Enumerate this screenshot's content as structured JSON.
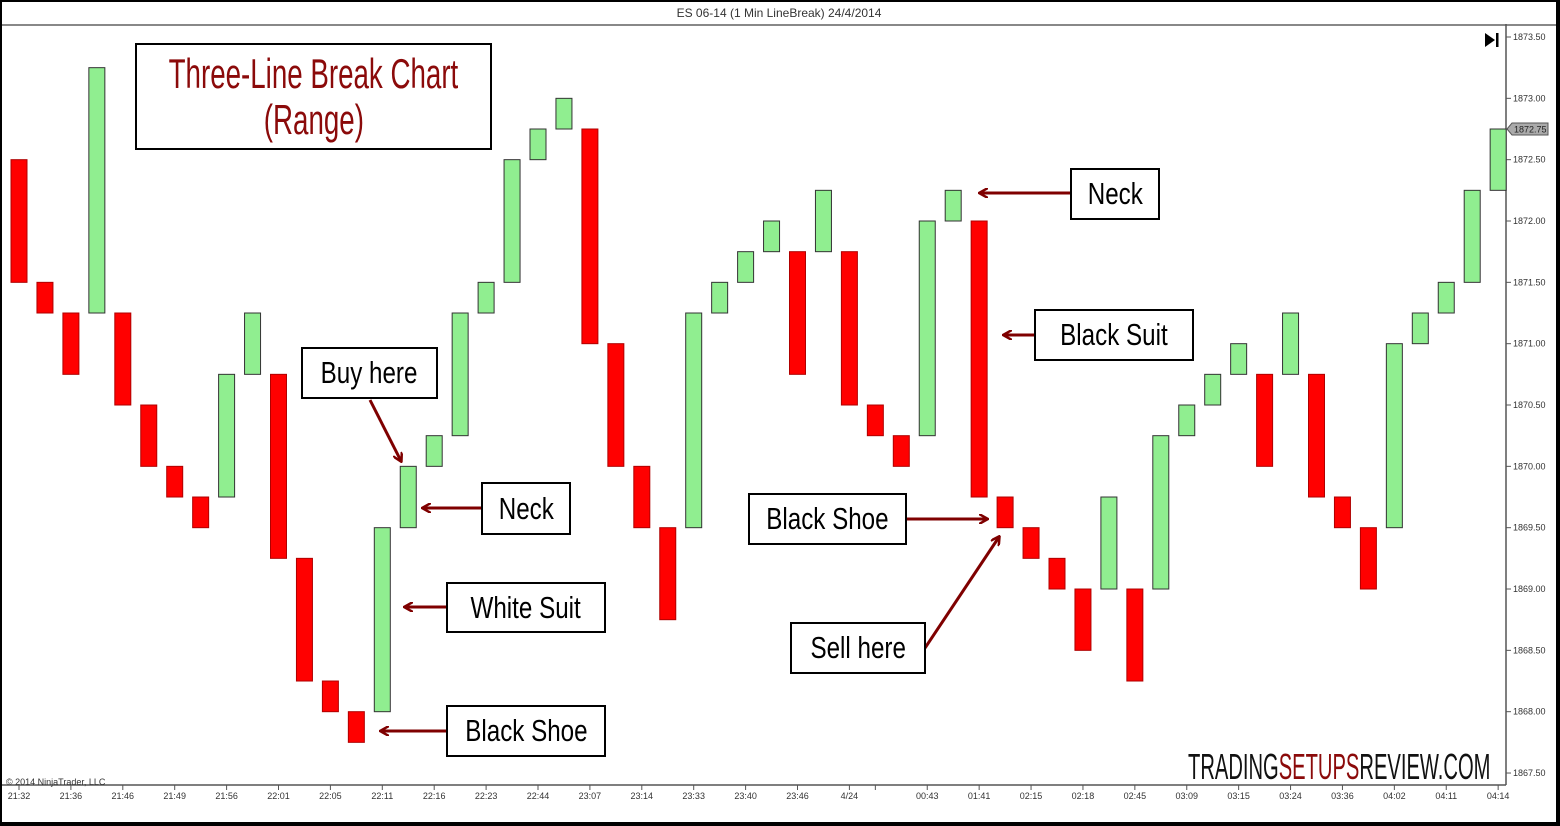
{
  "header": {
    "title": "ES 06-14 (1 Min LineBreak)  24/4/2014"
  },
  "copyright": "© 2014 NinjaTrader, LLC",
  "watermark": {
    "part1": "TRADING",
    "part2": "SETUPS",
    "part3": "REVIEW.COM"
  },
  "colors": {
    "up": "#90ee90",
    "down": "#ff0000",
    "annotation_arrow": "#7f0000",
    "title_text": "#8b0a0a",
    "watermark_accent": "#8b0a0a"
  },
  "icons": {
    "go_to_end": "play-end-icon"
  },
  "chart_data": {
    "type": "three-line-break",
    "title": "Three-Line Break Chart (Range)",
    "title_lines": [
      "Three-Line Break Chart",
      "(Range)"
    ],
    "ylim": [
      1867.5,
      1873.5
    ],
    "y_ticks": [
      "1873.50",
      "1873.00",
      "1872.50",
      "1872.00",
      "1871.50",
      "1871.00",
      "1870.50",
      "1870.00",
      "1869.50",
      "1869.00",
      "1868.50",
      "1868.00",
      "1867.50"
    ],
    "last_price": "1872.75",
    "bricks": [
      [
        1872.5,
        1871.5
      ],
      [
        1871.5,
        1871.25
      ],
      [
        1871.25,
        1870.75
      ],
      [
        1871.25,
        1873.25
      ],
      [
        1871.25,
        1870.5
      ],
      [
        1870.5,
        1870.0
      ],
      [
        1870.0,
        1869.75
      ],
      [
        1869.75,
        1869.5
      ],
      [
        1869.75,
        1870.75
      ],
      [
        1870.75,
        1871.25
      ],
      [
        1870.75,
        1869.25
      ],
      [
        1869.25,
        1868.25
      ],
      [
        1868.25,
        1868.0
      ],
      [
        1868.0,
        1867.75
      ],
      [
        1868.0,
        1869.5
      ],
      [
        1869.5,
        1870.0
      ],
      [
        1870.0,
        1870.25
      ],
      [
        1870.25,
        1871.25
      ],
      [
        1871.25,
        1871.5
      ],
      [
        1871.5,
        1872.5
      ],
      [
        1872.5,
        1872.75
      ],
      [
        1872.75,
        1873.0
      ],
      [
        1872.75,
        1871.0
      ],
      [
        1871.0,
        1870.0
      ],
      [
        1870.0,
        1869.5
      ],
      [
        1869.5,
        1868.75
      ],
      [
        1869.5,
        1871.25
      ],
      [
        1871.25,
        1871.5
      ],
      [
        1871.5,
        1871.75
      ],
      [
        1871.75,
        1872.0
      ],
      [
        1871.75,
        1870.75
      ],
      [
        1871.75,
        1872.25
      ],
      [
        1871.75,
        1870.5
      ],
      [
        1870.5,
        1870.25
      ],
      [
        1870.25,
        1870.0
      ],
      [
        1870.25,
        1872.0
      ],
      [
        1872.0,
        1872.25
      ],
      [
        1872.0,
        1869.75
      ],
      [
        1869.75,
        1869.5
      ],
      [
        1869.5,
        1869.25
      ],
      [
        1869.25,
        1869.0
      ],
      [
        1869.0,
        1868.5
      ],
      [
        1869.0,
        1869.75
      ],
      [
        1869.0,
        1868.25
      ],
      [
        1869.0,
        1870.25
      ],
      [
        1870.25,
        1870.5
      ],
      [
        1870.5,
        1870.75
      ],
      [
        1870.75,
        1871.0
      ],
      [
        1870.75,
        1870.0
      ],
      [
        1870.75,
        1871.25
      ],
      [
        1870.75,
        1869.75
      ],
      [
        1869.75,
        1869.5
      ],
      [
        1869.5,
        1869.0
      ],
      [
        1869.5,
        1871.0
      ],
      [
        1871.0,
        1871.25
      ],
      [
        1871.25,
        1871.5
      ],
      [
        1871.5,
        1872.25
      ],
      [
        1872.25,
        1872.75
      ]
    ],
    "x_ticks": [
      {
        "brick": 0,
        "label": "21:32"
      },
      {
        "brick": 2,
        "label": "21:36"
      },
      {
        "brick": 4,
        "label": "21:46"
      },
      {
        "brick": 6,
        "label": "21:49"
      },
      {
        "brick": 8,
        "label": "21:56"
      },
      {
        "brick": 10,
        "label": "22:01"
      },
      {
        "brick": 12,
        "label": "22:05"
      },
      {
        "brick": 14,
        "label": "22:11"
      },
      {
        "brick": 16,
        "label": "22:16"
      },
      {
        "brick": 18,
        "label": "22:23"
      },
      {
        "brick": 20,
        "label": "22:44"
      },
      {
        "brick": 22,
        "label": "23:07"
      },
      {
        "brick": 24,
        "label": "23:14"
      },
      {
        "brick": 26,
        "label": "23:33"
      },
      {
        "brick": 28,
        "label": "23:40"
      },
      {
        "brick": 30,
        "label": "23:46"
      },
      {
        "brick": 32,
        "label": "4/24"
      },
      {
        "brick": 33,
        "label": ""
      },
      {
        "brick": 35,
        "label": "00:43"
      },
      {
        "brick": 37,
        "label": "01:41"
      },
      {
        "brick": 39,
        "label": "02:15"
      },
      {
        "brick": 41,
        "label": "02:18"
      },
      {
        "brick": 43,
        "label": "02:45"
      },
      {
        "brick": 45,
        "label": "03:09"
      },
      {
        "brick": 47,
        "label": "03:15"
      },
      {
        "brick": 49,
        "label": "03:24"
      },
      {
        "brick": 51,
        "label": "03:36"
      },
      {
        "brick": 53,
        "label": "04:02"
      },
      {
        "brick": 55,
        "label": "04:11"
      },
      {
        "brick": 57,
        "label": "04:14"
      }
    ],
    "annotations": {
      "buy_here": "Buy here",
      "neck_left": "Neck",
      "white_suit": "White Suit",
      "black_shoe_left": "Black Shoe",
      "neck_right": "Neck",
      "black_suit": "Black Suit",
      "black_shoe_right": "Black Shoe",
      "sell_here": "Sell here"
    }
  }
}
